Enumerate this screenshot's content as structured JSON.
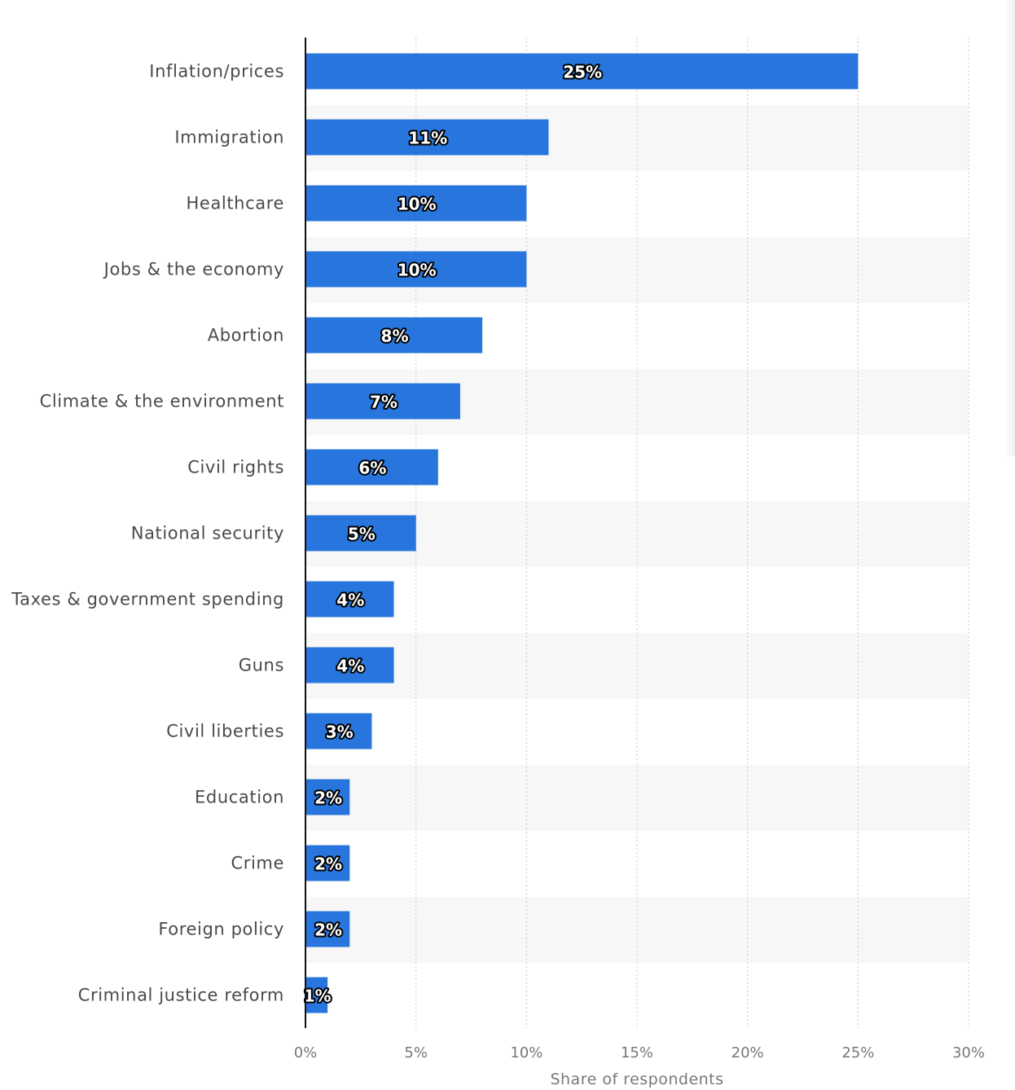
{
  "chart_data": {
    "type": "bar",
    "orientation": "horizontal",
    "categories": [
      "Inflation/prices",
      "Immigration",
      "Healthcare",
      "Jobs & the economy",
      "Abortion",
      "Climate & the environment",
      "Civil rights",
      "National security",
      "Taxes & government spending",
      "Guns",
      "Civil liberties",
      "Education",
      "Crime",
      "Foreign policy",
      "Criminal justice reform"
    ],
    "values": [
      25,
      11,
      10,
      10,
      8,
      7,
      6,
      5,
      4,
      4,
      3,
      2,
      2,
      2,
      1
    ],
    "data_labels": [
      "25%",
      "11%",
      "10%",
      "10%",
      "8%",
      "7%",
      "6%",
      "5%",
      "4%",
      "4%",
      "3%",
      "2%",
      "2%",
      "2%",
      "1%"
    ],
    "xlim": [
      0,
      30
    ],
    "x_ticks": [
      0,
      5,
      10,
      15,
      20,
      25,
      30
    ],
    "x_tick_labels": [
      "0%",
      "5%",
      "10%",
      "15%",
      "20%",
      "25%",
      "30%"
    ],
    "xlabel": "Share of respondents",
    "ylabel": "",
    "title": "",
    "grid": true,
    "bar_color": "#2876dd",
    "band_color": "#f7f7f7"
  }
}
